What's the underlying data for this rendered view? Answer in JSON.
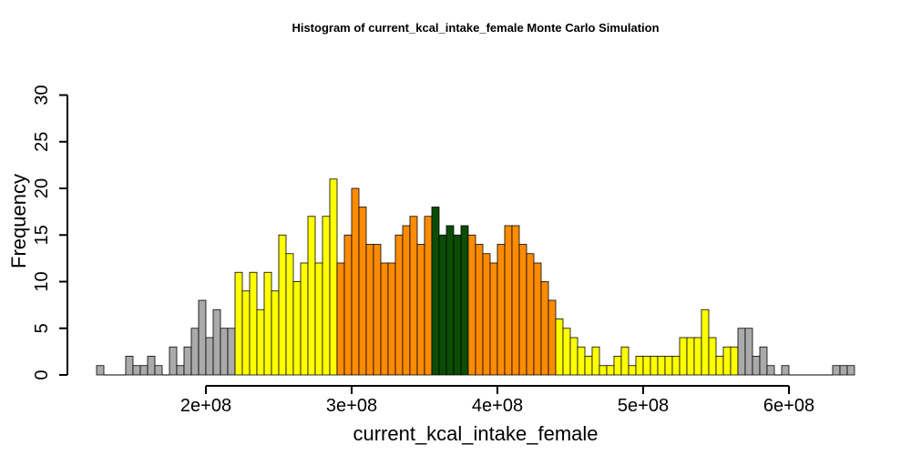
{
  "chart_data": {
    "type": "bar",
    "title": "Histogram of  current_kcal_intake_female  Monte Carlo Simulation",
    "xlabel": "current_kcal_intake_female",
    "ylabel": "Frequency",
    "bin_start": 125000000,
    "bin_width": 5000000,
    "xlim": [
      125000000,
      645000000
    ],
    "ylim": [
      0,
      33
    ],
    "xticks": [
      200000000,
      300000000,
      400000000,
      500000000,
      600000000
    ],
    "xtick_labels": [
      "2e+08",
      "3e+08",
      "4e+08",
      "5e+08",
      "6e+08"
    ],
    "yticks": [
      0,
      5,
      10,
      15,
      20,
      25,
      30
    ],
    "ytick_labels": [
      "0",
      "5",
      "10",
      "15",
      "20",
      "25",
      "30"
    ],
    "values": [
      1,
      0,
      0,
      0,
      2,
      1,
      1,
      2,
      1,
      0,
      3,
      1,
      3,
      5,
      8,
      4,
      7,
      5,
      5,
      11,
      9,
      11,
      7,
      11,
      9,
      15,
      13,
      10,
      12,
      17,
      12,
      17,
      21,
      12,
      15,
      20,
      18,
      14,
      14,
      12,
      12,
      15,
      16,
      17,
      14,
      17,
      18,
      15,
      16,
      15,
      16,
      15,
      14,
      13,
      12,
      14,
      16,
      16,
      14,
      13,
      12,
      10,
      8,
      6,
      5,
      4,
      3,
      2,
      3,
      1,
      1,
      2,
      3,
      1,
      2,
      2,
      2,
      2,
      2,
      2,
      4,
      4,
      4,
      7,
      4,
      2,
      3,
      3,
      5,
      5,
      2,
      3,
      1,
      0,
      1,
      0,
      0,
      0,
      0,
      0,
      0,
      1,
      1,
      1
    ],
    "colors": [
      "#aaaaaa",
      "#aaaaaa",
      "#aaaaaa",
      "#aaaaaa",
      "#aaaaaa",
      "#aaaaaa",
      "#aaaaaa",
      "#aaaaaa",
      "#aaaaaa",
      "#aaaaaa",
      "#aaaaaa",
      "#aaaaaa",
      "#aaaaaa",
      "#aaaaaa",
      "#aaaaaa",
      "#aaaaaa",
      "#aaaaaa",
      "#aaaaaa",
      "#aaaaaa",
      "#ffff00",
      "#ffff00",
      "#ffff00",
      "#ffff00",
      "#ffff00",
      "#ffff00",
      "#ffff00",
      "#ffff00",
      "#ffff00",
      "#ffff00",
      "#ffff00",
      "#ffff00",
      "#ffff00",
      "#ffff00",
      "#ff8c00",
      "#ff8c00",
      "#ff8c00",
      "#ff8c00",
      "#ff8c00",
      "#ff8c00",
      "#ff8c00",
      "#ff8c00",
      "#ff8c00",
      "#ff8c00",
      "#ff8c00",
      "#ff8c00",
      "#ff8c00",
      "#0b4d05",
      "#0b4d05",
      "#0b4d05",
      "#0b4d05",
      "#0b4d05",
      "#ff8c00",
      "#ff8c00",
      "#ff8c00",
      "#ff8c00",
      "#ff8c00",
      "#ff8c00",
      "#ff8c00",
      "#ff8c00",
      "#ff8c00",
      "#ff8c00",
      "#ff8c00",
      "#ff8c00",
      "#ffff00",
      "#ffff00",
      "#ffff00",
      "#ffff00",
      "#ffff00",
      "#ffff00",
      "#ffff00",
      "#ffff00",
      "#ffff00",
      "#ffff00",
      "#ffff00",
      "#ffff00",
      "#ffff00",
      "#ffff00",
      "#ffff00",
      "#ffff00",
      "#ffff00",
      "#ffff00",
      "#ffff00",
      "#ffff00",
      "#ffff00",
      "#ffff00",
      "#ffff00",
      "#ffff00",
      "#ffff00",
      "#aaaaaa",
      "#aaaaaa",
      "#aaaaaa",
      "#aaaaaa",
      "#aaaaaa",
      "#aaaaaa",
      "#aaaaaa",
      "#aaaaaa",
      "#aaaaaa",
      "#aaaaaa",
      "#aaaaaa",
      "#aaaaaa",
      "#aaaaaa",
      "#aaaaaa",
      "#aaaaaa",
      "#aaaaaa"
    ],
    "palette": {
      "tail": "#aaaaaa",
      "outer": "#ffff00",
      "inner": "#ff8c00",
      "center": "#0b4d05",
      "border": "#000000"
    },
    "grid": false,
    "legend": "none"
  }
}
